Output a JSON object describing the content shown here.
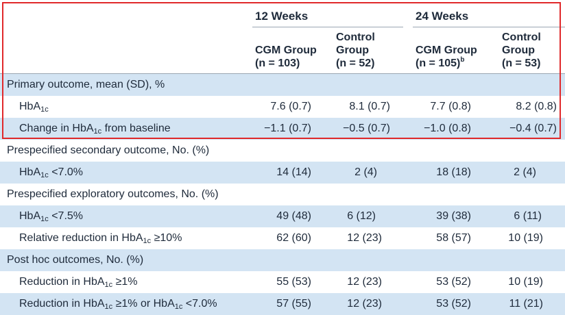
{
  "header": {
    "group_12": "12 Weeks",
    "group_24": "24 Weeks",
    "cols": [
      {
        "line1": "",
        "line2": "CGM Group",
        "line3": "(n = 103)",
        "sup": ""
      },
      {
        "line1": "Control",
        "line2": "Group",
        "line3": "(n = 52)",
        "sup": ""
      },
      {
        "line1": "",
        "line2": "CGM Group",
        "line3": "(n = 105)",
        "sup": "b"
      },
      {
        "line1": "Control",
        "line2": "Group",
        "line3": "(n = 53)",
        "sup": ""
      }
    ]
  },
  "sections": {
    "primary": "Primary outcome, mean (SD), %",
    "secondary": "Prespecified secondary outcome, No. (%)",
    "exploratory": "Prespecified exploratory outcomes, No. (%)",
    "posthoc": "Post hoc outcomes, No. (%)"
  },
  "rows": {
    "hba1c": {
      "pre": "HbA",
      "sub": "1c",
      "post": "",
      "vals": [
        "7.6 (0.7)",
        "8.1 (0.7)",
        "7.7 (0.8)",
        "8.2 (0.8)"
      ]
    },
    "change": {
      "pre": "Change in HbA",
      "sub": "1c",
      "post": " from baseline",
      "vals": [
        "−1.1 (0.7)",
        "−0.5 (0.7)",
        "−1.0 (0.8)",
        "−0.4 (0.7)"
      ]
    },
    "lt70": {
      "pre": "HbA",
      "sub": "1c",
      "post": " <7.0%",
      "vals": [
        "14 (14)",
        "2 (4)",
        "18 (18)",
        "2 (4)"
      ]
    },
    "lt75": {
      "pre": "HbA",
      "sub": "1c",
      "post": " <7.5%",
      "vals": [
        "49 (48)",
        "6 (12)",
        "39 (38)",
        "6 (11)"
      ]
    },
    "rel10": {
      "pre": "Relative reduction in HbA",
      "sub": "1c",
      "post": " ≥10%",
      "vals": [
        "62 (60)",
        "12 (23)",
        "58 (57)",
        "10 (19)"
      ]
    },
    "red1": {
      "pre": "Reduction in HbA",
      "sub": "1c",
      "post": " ≥1%",
      "vals": [
        "55 (53)",
        "12 (23)",
        "53 (52)",
        "10 (19)"
      ]
    },
    "red1or": {
      "pre": "Reduction in HbA",
      "sub": "1c",
      "post": " ≥1% or HbA",
      "sub2": "1c",
      "post2": " <7.0%",
      "vals": [
        "57 (55)",
        "12 (23)",
        "53 (52)",
        "11 (21)"
      ]
    }
  }
}
